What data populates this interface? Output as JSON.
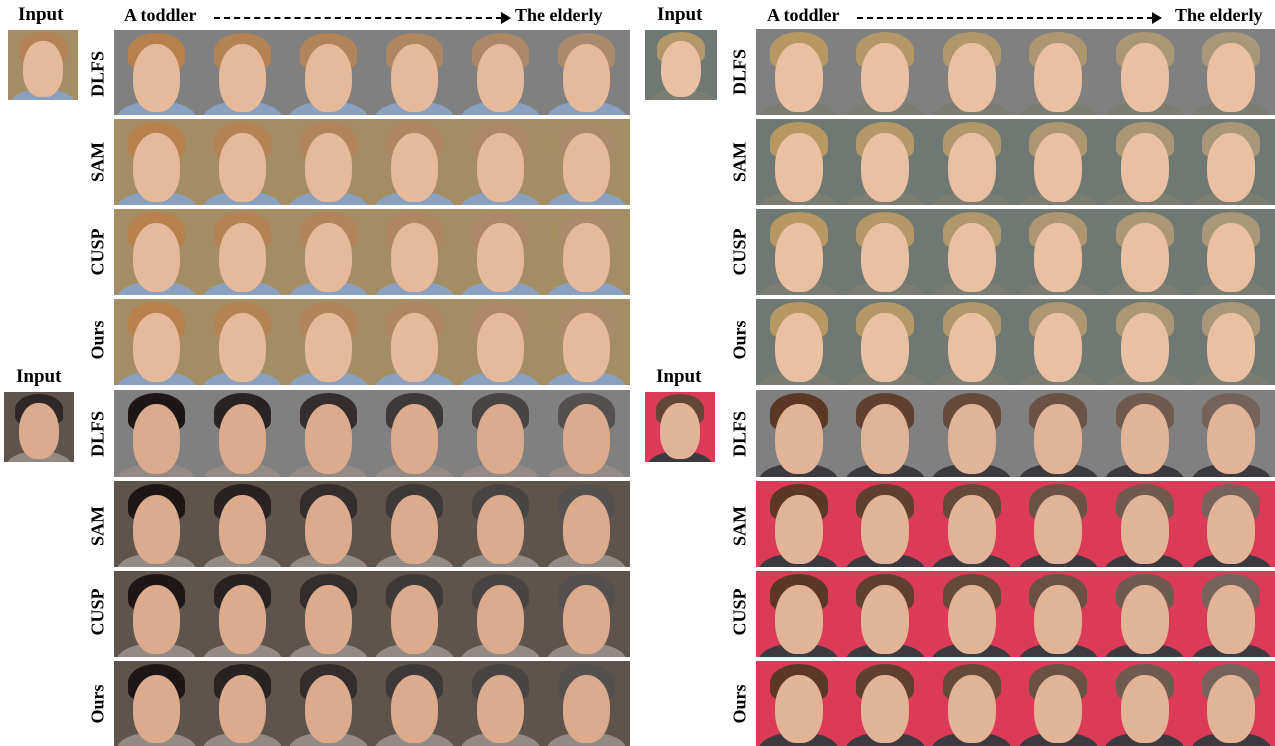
{
  "labels": {
    "input": "Input",
    "from_age": "A toddler",
    "to_age": "The elderly"
  },
  "methods": [
    "DLFS",
    "SAM",
    "CUSP",
    "Ours"
  ],
  "subjects": [
    {
      "id": "boy",
      "skin": "#e6b99a",
      "hair": "#b8804c",
      "clothes": "#8aa0bf",
      "background": "#a48d63",
      "dlfs_background": "#808080"
    },
    {
      "id": "blonde-girl",
      "skin": "#e9c1a2",
      "hair": "#b79862",
      "clothes": "#7c7d72",
      "background": "#6f7872",
      "dlfs_background": "#808080"
    },
    {
      "id": "dark-hair-girl",
      "skin": "#dcaa8c",
      "hair": "#1e1616",
      "clothes": "#938a86",
      "background": "#5e544c",
      "dlfs_background": "#808080"
    },
    {
      "id": "curly-man",
      "skin": "#e2b497",
      "hair": "#5a3825",
      "clothes": "#3d3a3f",
      "background": "#dc3b58",
      "dlfs_background": "#808080"
    }
  ]
}
